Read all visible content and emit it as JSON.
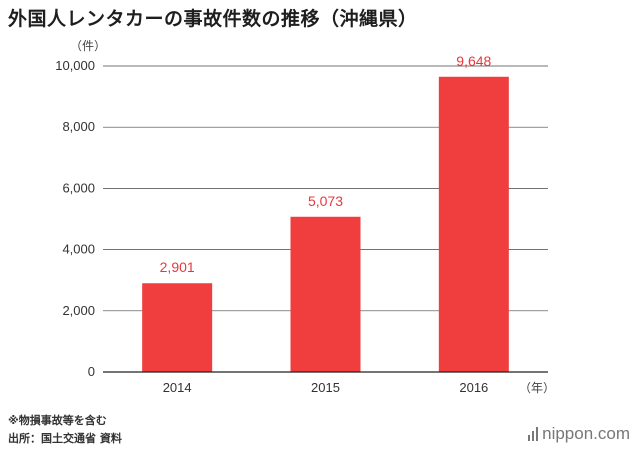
{
  "title": "外国人レンタカーの事故件数の推移（沖縄県）",
  "colors": {
    "bar": "#f03e3e",
    "data_label": "#e8383d",
    "axis": "#222222",
    "grid": "#444444"
  },
  "chart_data": {
    "type": "bar",
    "categories": [
      "2014",
      "2015",
      "2016"
    ],
    "values": [
      2901,
      5073,
      9648
    ],
    "value_labels": [
      "2,901",
      "5,073",
      "9,648"
    ],
    "y_ticks": [
      0,
      2000,
      4000,
      6000,
      8000,
      10000
    ],
    "y_tick_labels": [
      "0",
      "2,000",
      "4,000",
      "6,000",
      "8,000",
      "10,000"
    ],
    "ylim": [
      0,
      10000
    ],
    "y_unit": "（件）",
    "x_unit": "（年）",
    "grid": true,
    "legend": "none"
  },
  "footer": {
    "note": "※物損事故等を含む",
    "source": "出所：国土交通省 資料"
  },
  "brand": {
    "name": "nippon.com",
    "icon": "nippon-logo-icon"
  }
}
